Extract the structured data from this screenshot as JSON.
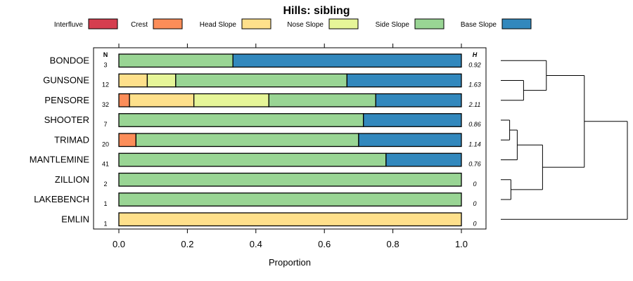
{
  "chart_data": {
    "type": "bar",
    "orientation": "horizontal",
    "stacked": true,
    "title": "Hills: sibling",
    "xlabel": "Proportion",
    "ylabel": "",
    "xlim": [
      0,
      1
    ],
    "xticks": [
      0,
      0.2,
      0.4,
      0.6,
      0.8,
      1
    ],
    "xtick_labels": [
      "0.0",
      "0.2",
      "0.4",
      "0.6",
      "0.8",
      "1.0"
    ],
    "n_header": "N",
    "h_header": "H",
    "legend_position": "top",
    "legend": [
      {
        "name": "Interfluve",
        "color": "#D53E4F"
      },
      {
        "name": "Crest",
        "color": "#FC8D59"
      },
      {
        "name": "Head Slope",
        "color": "#FEE08B"
      },
      {
        "name": "Nose Slope",
        "color": "#E6F598"
      },
      {
        "name": "Side Slope",
        "color": "#99D594"
      },
      {
        "name": "Base Slope",
        "color": "#3288BD"
      }
    ],
    "categories": [
      "BONDOE",
      "GUNSONE",
      "PENSORE",
      "SHOOTER",
      "TRIMAD",
      "MANTLEMINE",
      "ZILLION",
      "LAKEBENCH",
      "EMLIN"
    ],
    "n_values": [
      "3",
      "12",
      "32",
      "7",
      "20",
      "41",
      "2",
      "1",
      "1"
    ],
    "h_values": [
      "0.92",
      "1.63",
      "2.11",
      "0.86",
      "1.14",
      "0.76",
      "0",
      "0",
      "0"
    ],
    "series": [
      {
        "name": "Interfluve",
        "values": [
          0,
          0,
          0,
          0,
          0,
          0,
          0,
          0,
          0
        ]
      },
      {
        "name": "Crest",
        "values": [
          0,
          0,
          0.031,
          0,
          0.05,
          0,
          0,
          0,
          0
        ]
      },
      {
        "name": "Head Slope",
        "values": [
          0,
          0.083,
          0.188,
          0,
          0,
          0,
          0,
          0,
          1
        ]
      },
      {
        "name": "Nose Slope",
        "values": [
          0,
          0.083,
          0.219,
          0,
          0,
          0,
          0,
          0,
          0
        ]
      },
      {
        "name": "Side Slope",
        "values": [
          0.333,
          0.5,
          0.312,
          0.714,
          0.65,
          0.78,
          1,
          1,
          0
        ]
      },
      {
        "name": "Base Slope",
        "values": [
          0.667,
          0.334,
          0.25,
          0.286,
          0.3,
          0.22,
          0,
          0,
          0
        ]
      }
    ],
    "dendrogram": {
      "type": "hierarchical-clustering",
      "leaves": [
        "BONDOE",
        "GUNSONE",
        "PENSORE",
        "SHOOTER",
        "TRIMAD",
        "MANTLEMINE",
        "ZILLION",
        "LAKEBENCH",
        "EMLIN"
      ],
      "merges": [
        {
          "a": "GUNSONE",
          "b": "PENSORE",
          "height": 0.9
        },
        {
          "a": "BONDOE",
          "b": "GUNSONE+PENSORE",
          "height": 1.8
        },
        {
          "a": "SHOOTER",
          "b": "TRIMAD",
          "height": 0.35
        },
        {
          "a": "SHOOTER+TRIMAD",
          "b": "MANTLEMINE",
          "height": 0.65
        },
        {
          "a": "ZILLION",
          "b": "LAKEBENCH",
          "height": 0.4
        },
        {
          "a": "SHOOTER+TRIMAD+MANTLEMINE",
          "b": "ZILLION+LAKEBENCH",
          "height": 1.65
        },
        {
          "a": "BONDOE+GUNSONE+PENSORE",
          "b": "SHOOTER+TRIMAD+MANTLEMINE+ZILLION+LAKEBENCH",
          "height": 3.3
        },
        {
          "a": "ALL-BUT-EMLIN",
          "b": "EMLIN",
          "height": 5.0
        }
      ]
    }
  }
}
